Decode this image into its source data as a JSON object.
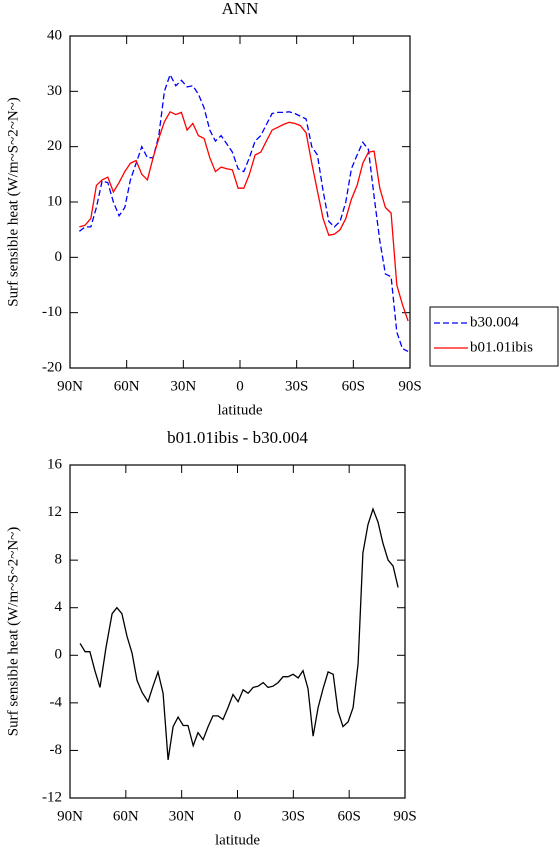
{
  "chart_data": [
    {
      "type": "line",
      "title": "ANN",
      "x_label": "latitude",
      "y_label": "Surf sensible heat (W/m~S~2~N~)",
      "x": [
        85,
        82,
        79,
        76,
        73,
        70,
        67,
        64,
        61,
        58,
        55,
        52,
        49,
        46,
        43,
        40,
        37,
        34,
        31,
        28,
        25,
        22,
        19,
        16,
        13,
        10,
        7,
        4,
        1,
        -2,
        -5,
        -8,
        -11,
        -14,
        -17,
        -20,
        -23,
        -26,
        -29,
        -32,
        -35,
        -38,
        -41,
        -44,
        -47,
        -50,
        -53,
        -56,
        -59,
        -62,
        -65,
        -68,
        -71,
        -74,
        -77,
        -80,
        -83,
        -86,
        -89
      ],
      "series": [
        {
          "name": "b30.004",
          "color": "#0000ff",
          "line_style": "dashed",
          "values": [
            4.7,
            5.5,
            5.5,
            9,
            13.8,
            13.5,
            10,
            7.5,
            9,
            14,
            17,
            20,
            18,
            18,
            22,
            30,
            33,
            31,
            32,
            30.8,
            31,
            29.5,
            27,
            23,
            21,
            22,
            20.5,
            19,
            16,
            15.5,
            18,
            21,
            22,
            24,
            26,
            26.2,
            26.2,
            26.3,
            26,
            25.5,
            25,
            20,
            18.5,
            12,
            6.5,
            5.5,
            6.5,
            10,
            16,
            18.5,
            20.8,
            19.5,
            11,
            3,
            -3,
            -3.5,
            -13.5,
            -16.5,
            -17
          ]
        },
        {
          "name": "b01.01ibis",
          "color": "#ff0000",
          "line_style": "solid",
          "values": [
            5.5,
            5.8,
            7,
            13,
            14,
            14.5,
            11.8,
            13.5,
            15.5,
            17,
            17.5,
            15,
            14,
            18,
            21.5,
            24.5,
            26.3,
            25.8,
            26.2,
            23,
            24.2,
            22,
            21.5,
            18,
            15.5,
            16.3,
            16,
            15.8,
            12.5,
            12.5,
            15,
            18.5,
            19,
            21,
            23,
            23.5,
            24,
            24.4,
            24.2,
            23.8,
            22.5,
            17,
            12,
            7,
            4,
            4.2,
            5,
            7,
            10.5,
            13,
            17,
            19,
            19.2,
            12.5,
            9,
            8,
            -5,
            -8.5,
            -11.5
          ]
        }
      ],
      "xlim": [
        90,
        -90
      ],
      "xticks": [
        {
          "value": 90,
          "label": "90N"
        },
        {
          "value": 60,
          "label": "60N"
        },
        {
          "value": 30,
          "label": "30N"
        },
        0,
        {
          "value": -30,
          "label": "30S"
        },
        {
          "value": -60,
          "label": "60S"
        },
        {
          "value": -90,
          "label": "90S"
        }
      ],
      "ylim": [
        -20,
        40
      ],
      "yticks": [
        -20,
        -10,
        0,
        10,
        20,
        30,
        40
      ],
      "legend": "right"
    },
    {
      "type": "line",
      "title": "b01.01ibis - b30.004",
      "x_label": "latitude",
      "y_label": "Surf sensible heat (W/m~S~2~N~)",
      "x": [
        84.6,
        81.9,
        79.3,
        76.6,
        73.9,
        70.7,
        67.4,
        64.8,
        62.1,
        59.4,
        56.7,
        54,
        51.3,
        48.1,
        45.4,
        42.7,
        40,
        37.3,
        34.6,
        31.9,
        29.2,
        26.6,
        23.8,
        21.2,
        18.5,
        15.8,
        13.2,
        10.4,
        7.8,
        5.1,
        2.4,
        -0.3,
        -3,
        -5.7,
        -8.4,
        -11.1,
        -13.8,
        -16.4,
        -19.1,
        -21.8,
        -24.5,
        -27.2,
        -29.9,
        -32.6,
        -35.2,
        -37.9,
        -40.6,
        -43.3,
        -46,
        -48.7,
        -51.4,
        -54,
        -56.7,
        -59.4,
        -62.1,
        -64.8,
        -67.4,
        -70.1,
        -72.8,
        -75.5,
        -78.2,
        -80.9,
        -83.6,
        -86.3
      ],
      "values": [
        1,
        0.3,
        0.3,
        -1.3,
        -2.7,
        0.6,
        3.5,
        4,
        3.5,
        1.6,
        0.2,
        -2.1,
        -3.1,
        -3.9,
        -2.6,
        -1.4,
        -3.2,
        -8.8,
        -6,
        -5.2,
        -5.9,
        -5.9,
        -7.6,
        -6.5,
        -7.1,
        -6,
        -5.1,
        -5.1,
        -5.4,
        -4.4,
        -3.3,
        -3.9,
        -2.9,
        -3.2,
        -2.7,
        -2.6,
        -2.3,
        -2.7,
        -2.6,
        -2.3,
        -1.8,
        -1.8,
        -1.6,
        -1.9,
        -1.3,
        -2.8,
        -6.8,
        -4.4,
        -2.8,
        -1.4,
        -1.6,
        -4.7,
        -6,
        -5.6,
        -4.4,
        -0.7,
        8.6,
        11,
        12.3,
        11.2,
        9.4,
        8,
        7.5,
        5.7
      ],
      "color": "#000000",
      "xlim": [
        90,
        -90
      ],
      "xticks": [
        {
          "value": 90,
          "label": "90N"
        },
        {
          "value": 60,
          "label": "60N"
        },
        {
          "value": 30,
          "label": "30N"
        },
        0,
        {
          "value": -30,
          "label": "30S"
        },
        {
          "value": -60,
          "label": "60S"
        },
        {
          "value": -90,
          "label": "90S"
        }
      ],
      "ylim": [
        -12,
        16
      ],
      "yticks": [
        -12,
        -8,
        -4,
        0,
        4,
        8,
        12,
        16
      ]
    }
  ]
}
